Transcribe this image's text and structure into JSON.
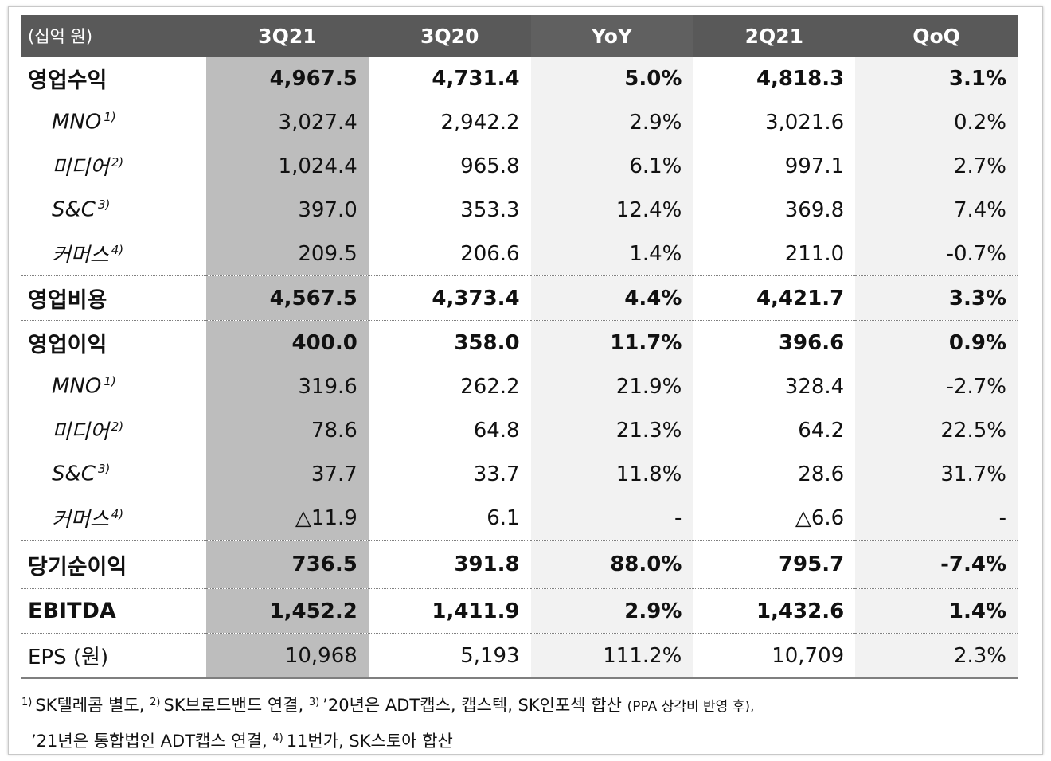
{
  "table": {
    "headers": {
      "unit": "(십억 원)",
      "q3_21": "3Q21",
      "q3_20": "3Q20",
      "yoy": "YoY",
      "q2_21": "2Q21",
      "qoq": "QoQ"
    },
    "rows": [
      {
        "label": "영업수익",
        "sup": "",
        "q3_21": "4,967.5",
        "q3_20": "4,731.4",
        "yoy": "5.0%",
        "q2_21": "4,818.3",
        "qoq": "3.1%"
      },
      {
        "label": "MNO",
        "sup": "1)",
        "q3_21": "3,027.4",
        "q3_20": "2,942.2",
        "yoy": "2.9%",
        "q2_21": "3,021.6",
        "qoq": "0.2%"
      },
      {
        "label": "미디어",
        "sup": "2)",
        "q3_21": "1,024.4",
        "q3_20": "965.8",
        "yoy": "6.1%",
        "q2_21": "997.1",
        "qoq": "2.7%"
      },
      {
        "label": "S&C",
        "sup": "3)",
        "q3_21": "397.0",
        "q3_20": "353.3",
        "yoy": "12.4%",
        "q2_21": "369.8",
        "qoq": "7.4%"
      },
      {
        "label": "커머스",
        "sup": "4)",
        "q3_21": "209.5",
        "q3_20": "206.6",
        "yoy": "1.4%",
        "q2_21": "211.0",
        "qoq": "-0.7%"
      },
      {
        "label": "영업비용",
        "sup": "",
        "q3_21": "4,567.5",
        "q3_20": "4,373.4",
        "yoy": "4.4%",
        "q2_21": "4,421.7",
        "qoq": "3.3%"
      },
      {
        "label": "영업이익",
        "sup": "",
        "q3_21": "400.0",
        "q3_20": "358.0",
        "yoy": "11.7%",
        "q2_21": "396.6",
        "qoq": "0.9%"
      },
      {
        "label": "MNO",
        "sup": "1)",
        "q3_21": "319.6",
        "q3_20": "262.2",
        "yoy": "21.9%",
        "q2_21": "328.4",
        "qoq": "-2.7%"
      },
      {
        "label": "미디어",
        "sup": "2)",
        "q3_21": "78.6",
        "q3_20": "64.8",
        "yoy": "21.3%",
        "q2_21": "64.2",
        "qoq": "22.5%"
      },
      {
        "label": "S&C",
        "sup": "3)",
        "q3_21": "37.7",
        "q3_20": "33.7",
        "yoy": "11.8%",
        "q2_21": "28.6",
        "qoq": "31.7%"
      },
      {
        "label": "커머스",
        "sup": "4)",
        "q3_21": "△11.9",
        "q3_20": "6.1",
        "yoy": "-",
        "q2_21": "△6.6",
        "qoq": "-"
      },
      {
        "label": "당기순이익",
        "sup": "",
        "q3_21": "736.5",
        "q3_20": "391.8",
        "yoy": "88.0%",
        "q2_21": "795.7",
        "qoq": "-7.4%"
      },
      {
        "label": "EBITDA",
        "sup": "",
        "q3_21": "1,452.2",
        "q3_20": "1,411.9",
        "yoy": "2.9%",
        "q2_21": "1,432.6",
        "qoq": "1.4%"
      },
      {
        "label": "EPS (원)",
        "sup": "",
        "q3_21": "10,968",
        "q3_20": "5,193",
        "yoy": "111.2%",
        "q2_21": "10,709",
        "qoq": "2.3%"
      }
    ]
  },
  "notes": {
    "n1_mark": "1)",
    "n1_text": "SK텔레콤 별도,",
    "n2_mark": "2)",
    "n2_text": "SK브로드밴드 연결,",
    "n3_mark": "3)",
    "n3_text": "’20년은 ADT캡스, 캡스텍, SK인포섹 합산",
    "n3_small": "(PPA 상각비 반영 후),",
    "n3_cont": "’21년은 통합법인 ADT캡스 연결,",
    "n4_mark": "4)",
    "n4_text": "11번가, SK스토아 합산"
  }
}
